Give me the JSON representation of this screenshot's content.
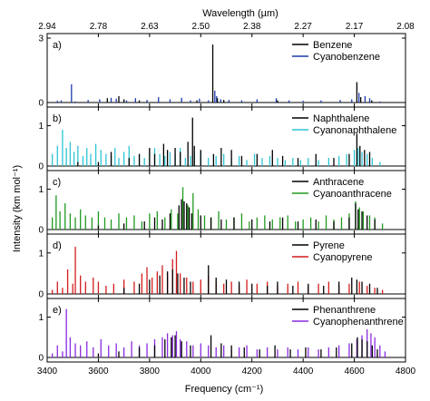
{
  "chart_data": {
    "type": "line",
    "style": "stick spectra, vertically stacked panels sharing the x axis",
    "xlabel": "Frequency (cm⁻¹)",
    "ylabel": "Intensity (km mol⁻¹)",
    "top_axis_label": "Wavelength (µm)",
    "xlim": [
      3400,
      4800
    ],
    "x_ticks": [
      3400,
      3600,
      3800,
      4000,
      4200,
      4400,
      4600,
      4800
    ],
    "x_tick_labels": [
      "3400",
      "3600",
      "3800",
      "4000",
      "4200",
      "4400",
      "4600",
      "4800"
    ],
    "top_ticks_um": [
      "2.94",
      "2.78",
      "2.63",
      "2.50",
      "2.38",
      "2.27",
      "2.17",
      "2.08"
    ],
    "grid": false,
    "legend_position": "top-right of each panel",
    "colors": {
      "black": "#000000",
      "blue": "#1c3aa8",
      "cyan": "#2ec4d6",
      "green": "#1f9a1f",
      "red": "#d41c1c",
      "purple": "#8a2be2"
    },
    "panels": [
      {
        "label": "a)",
        "ylim": [
          0,
          3
        ],
        "y_ticks": [
          0,
          3
        ],
        "y_tick_labels": [
          "0",
          "3"
        ],
        "series": [
          {
            "name": "Cyanobenzene",
            "color": "#1c3aa8",
            "x": [
              3440,
              3455,
              3495,
              3510,
              3560,
              3605,
              3650,
              3670,
              3710,
              3745,
              3790,
              3835,
              3880,
              3925,
              3960,
              3995,
              4030,
              4055,
              4062,
              4078,
              4110,
              4160,
              4220,
              4295,
              4345,
              4400,
              4470,
              4545,
              4590,
              4618,
              4642,
              4660,
              4700
            ],
            "y": [
              0.08,
              0.1,
              0.85,
              0.05,
              0.12,
              0.15,
              0.22,
              0.18,
              0.1,
              0.2,
              0.12,
              0.25,
              0.15,
              0.22,
              0.1,
              0.18,
              0.1,
              0.55,
              0.3,
              0.15,
              0.12,
              0.1,
              0.15,
              0.2,
              0.1,
              0.08,
              0.1,
              0.12,
              0.15,
              0.45,
              0.3,
              0.2,
              0.05
            ]
          },
          {
            "name": "Benzene",
            "color": "#000000",
            "x": [
              3635,
              3680,
              3700,
              3760,
              3985,
              4047,
              4065,
              4090,
              4300,
              4610,
              4625,
              4668
            ],
            "y": [
              0.2,
              0.3,
              0.15,
              0.1,
              0.1,
              2.7,
              0.2,
              0.12,
              0.1,
              0.95,
              0.25,
              0.1
            ]
          }
        ]
      },
      {
        "label": "b)",
        "ylim": [
          0,
          1.35
        ],
        "y_ticks": [
          0,
          1
        ],
        "y_tick_labels": [
          "0",
          "1"
        ],
        "series": [
          {
            "name": "Cyanonaphthalene",
            "color": "#2ec4d6",
            "x": [
              3420,
              3440,
              3460,
              3475,
              3490,
              3505,
              3520,
              3540,
              3555,
              3570,
              3590,
              3610,
              3630,
              3650,
              3665,
              3680,
              3700,
              3720,
              3740,
              3760,
              3780,
              3800,
              3820,
              3840,
              3860,
              3880,
              3900,
              3920,
              3940,
              3960,
              3975,
              4000,
              4030,
              4060,
              4090,
              4120,
              4150,
              4180,
              4210,
              4240,
              4270,
              4300,
              4330,
              4360,
              4390,
              4420,
              4460,
              4500,
              4540,
              4570,
              4600,
              4615,
              4630,
              4650,
              4670,
              4700
            ],
            "y": [
              0.3,
              0.5,
              0.9,
              0.45,
              0.6,
              0.35,
              0.5,
              0.25,
              0.45,
              0.3,
              0.55,
              0.4,
              0.3,
              0.25,
              0.45,
              0.2,
              0.35,
              0.5,
              0.25,
              0.3,
              0.2,
              0.4,
              0.45,
              0.3,
              0.25,
              0.35,
              0.3,
              0.45,
              0.2,
              0.25,
              0.3,
              0.35,
              0.2,
              0.25,
              0.3,
              0.2,
              0.25,
              0.15,
              0.3,
              0.2,
              0.25,
              0.2,
              0.15,
              0.2,
              0.15,
              0.2,
              0.15,
              0.2,
              0.25,
              0.3,
              0.4,
              0.45,
              0.35,
              0.3,
              0.2,
              0.1
            ]
          },
          {
            "name": "Naphthalene",
            "color": "#000000",
            "x": [
              3520,
              3600,
              3650,
              3720,
              3760,
              3800,
              3820,
              3855,
              3870,
              3900,
              3920,
              3950,
              3968,
              3975,
              4000,
              4050,
              4080,
              4120,
              4160,
              4220,
              4280,
              4320,
              4380,
              4450,
              4520,
              4580,
              4610,
              4622,
              4640,
              4660
            ],
            "y": [
              0.1,
              0.1,
              0.35,
              0.2,
              0.3,
              0.45,
              0.3,
              0.55,
              0.4,
              0.45,
              0.35,
              0.6,
              1.2,
              0.5,
              0.4,
              0.3,
              0.45,
              0.4,
              0.25,
              0.3,
              0.4,
              0.25,
              0.2,
              0.3,
              0.2,
              0.3,
              0.8,
              0.5,
              0.4,
              0.35
            ]
          }
        ]
      },
      {
        "label": "c)",
        "ylim": [
          0,
          1.35
        ],
        "y_ticks": [
          0,
          1
        ],
        "y_tick_labels": [
          "0",
          "1"
        ],
        "series": [
          {
            "name": "Cyanoanthracene",
            "color": "#1f9a1f",
            "x": [
              3420,
              3435,
              3450,
              3470,
              3490,
              3510,
              3530,
              3550,
              3575,
              3600,
              3625,
              3650,
              3680,
              3710,
              3740,
              3770,
              3800,
              3830,
              3860,
              3885,
              3910,
              3930,
              3950,
              3970,
              3990,
              4015,
              4040,
              4070,
              4100,
              4130,
              4160,
              4190,
              4220,
              4250,
              4280,
              4310,
              4340,
              4370,
              4400,
              4430,
              4460,
              4490,
              4520,
              4550,
              4580,
              4605,
              4620,
              4635,
              4660,
              4680,
              4710
            ],
            "y": [
              0.3,
              0.85,
              0.45,
              0.65,
              0.4,
              0.3,
              0.5,
              0.35,
              0.3,
              0.45,
              0.3,
              0.25,
              0.4,
              0.3,
              0.35,
              0.2,
              0.4,
              0.45,
              0.3,
              0.5,
              0.4,
              1.05,
              0.6,
              0.9,
              0.5,
              0.35,
              0.3,
              0.45,
              0.25,
              0.3,
              0.4,
              0.2,
              0.3,
              0.35,
              0.25,
              0.3,
              0.35,
              0.2,
              0.25,
              0.3,
              0.2,
              0.35,
              0.25,
              0.3,
              0.4,
              0.7,
              0.55,
              0.45,
              0.35,
              0.3,
              0.15
            ]
          },
          {
            "name": "Anthracene",
            "color": "#000000",
            "x": [
              3600,
              3700,
              3780,
              3820,
              3850,
              3880,
              3915,
              3925,
              3935,
              3945,
              3955,
              3965,
              4000,
              4040,
              4080,
              4130,
              4200,
              4270,
              4320,
              4380,
              4450,
              4520,
              4580,
              4605,
              4615,
              4630,
              4650,
              4680
            ],
            "y": [
              0.1,
              0.15,
              0.2,
              0.3,
              0.25,
              0.4,
              0.6,
              0.75,
              0.7,
              0.65,
              0.55,
              0.4,
              0.35,
              0.3,
              0.25,
              0.3,
              0.25,
              0.2,
              0.3,
              0.2,
              0.25,
              0.2,
              0.3,
              0.65,
              0.5,
              0.45,
              0.35,
              0.25
            ]
          }
        ]
      },
      {
        "label": "d)",
        "ylim": [
          0,
          1.35
        ],
        "y_ticks": [
          0,
          1
        ],
        "y_tick_labels": [
          "0",
          "1"
        ],
        "series": [
          {
            "name": "Cyanopyrene",
            "color": "#d41c1c",
            "x": [
              3420,
              3440,
              3460,
              3480,
              3500,
              3510,
              3530,
              3550,
              3580,
              3600,
              3630,
              3660,
              3700,
              3740,
              3770,
              3790,
              3810,
              3830,
              3850,
              3870,
              3890,
              3905,
              3920,
              3945,
              3970,
              4000,
              4030,
              4060,
              4090,
              4120,
              4150,
              4180,
              4220,
              4260,
              4300,
              4340,
              4380,
              4420,
              4460,
              4500,
              4540,
              4580,
              4620,
              4650,
              4680,
              4710
            ],
            "y": [
              0.1,
              0.3,
              0.15,
              0.6,
              0.25,
              1.15,
              0.45,
              0.3,
              0.4,
              0.3,
              0.2,
              0.25,
              0.35,
              0.3,
              0.5,
              0.65,
              0.4,
              0.55,
              0.7,
              0.5,
              0.85,
              1.05,
              0.5,
              0.4,
              0.3,
              0.35,
              0.45,
              0.3,
              0.25,
              0.3,
              0.2,
              0.35,
              0.25,
              0.3,
              0.2,
              0.25,
              0.3,
              0.2,
              0.25,
              0.3,
              0.2,
              0.25,
              0.3,
              0.2,
              0.15,
              0.1
            ]
          },
          {
            "name": "Pyrene",
            "color": "#000000",
            "x": [
              3700,
              3760,
              3800,
              3840,
              3870,
              3890,
              3910,
              3935,
              3960,
              4030,
              4060,
              4100,
              4150,
              4200,
              4260,
              4300,
              4360,
              4420,
              4480,
              4540,
              4590,
              4610,
              4630,
              4660,
              4690
            ],
            "y": [
              0.15,
              0.25,
              0.35,
              0.45,
              0.55,
              0.6,
              0.5,
              0.4,
              0.3,
              0.7,
              0.4,
              0.35,
              0.3,
              0.25,
              0.2,
              0.3,
              0.2,
              0.25,
              0.2,
              0.3,
              0.4,
              0.35,
              0.3,
              0.25,
              0.15
            ]
          }
        ]
      },
      {
        "label": "e)",
        "ylim": [
          0,
          1.35
        ],
        "y_ticks": [
          0,
          1
        ],
        "y_tick_labels": [
          "0",
          "1"
        ],
        "series": [
          {
            "name": "Cyanophenanthrene",
            "color": "#8a2be2",
            "x": [
              3420,
              3440,
              3460,
              3475,
              3490,
              3510,
              3530,
              3555,
              3580,
              3610,
              3640,
              3670,
              3700,
              3730,
              3760,
              3790,
              3820,
              3850,
              3870,
              3890,
              3905,
              3920,
              3945,
              3970,
              4000,
              4030,
              4060,
              4090,
              4120,
              4150,
              4180,
              4220,
              4260,
              4300,
              4340,
              4380,
              4420,
              4460,
              4500,
              4540,
              4580,
              4610,
              4630,
              4650,
              4665,
              4680,
              4700,
              4720
            ],
            "y": [
              0.1,
              0.3,
              0.15,
              1.2,
              0.5,
              0.35,
              0.3,
              0.4,
              0.25,
              0.45,
              0.3,
              0.35,
              0.25,
              0.4,
              0.3,
              0.35,
              0.45,
              0.5,
              0.6,
              0.55,
              0.65,
              0.45,
              0.4,
              0.3,
              0.35,
              0.3,
              0.25,
              0.3,
              0.2,
              0.25,
              0.3,
              0.2,
              0.25,
              0.2,
              0.25,
              0.2,
              0.25,
              0.2,
              0.25,
              0.3,
              0.35,
              0.45,
              0.55,
              0.7,
              0.6,
              0.5,
              0.3,
              0.15
            ]
          },
          {
            "name": "Phenanthrene",
            "color": "#000000",
            "x": [
              3600,
              3680,
              3760,
              3820,
              3860,
              3885,
              3900,
              3925,
              3960,
              4040,
              4080,
              4120,
              4170,
              4230,
              4290,
              4350,
              4410,
              4470,
              4530,
              4590,
              4612,
              4630,
              4650,
              4670,
              4690
            ],
            "y": [
              0.1,
              0.15,
              0.25,
              0.3,
              0.45,
              0.5,
              0.55,
              0.4,
              0.3,
              0.55,
              0.35,
              0.3,
              0.25,
              0.2,
              0.3,
              0.2,
              0.25,
              0.2,
              0.25,
              0.35,
              0.5,
              0.45,
              0.4,
              0.3,
              0.2
            ]
          }
        ]
      }
    ]
  }
}
